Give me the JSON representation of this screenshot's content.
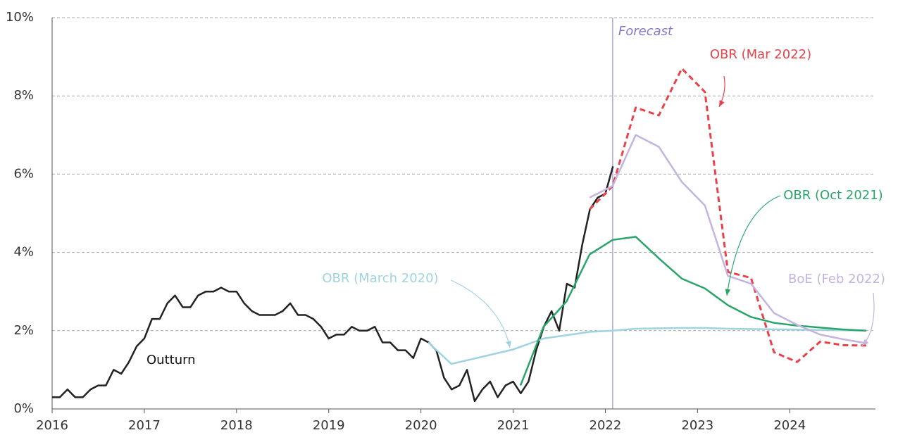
{
  "chart_data": {
    "type": "line",
    "xlim": [
      2016,
      2024.93
    ],
    "xticks": [
      2016,
      2017,
      2018,
      2019,
      2020,
      2021,
      2022,
      2023,
      2024
    ],
    "ylim": [
      0,
      10
    ],
    "yticks": [
      {
        "value": 0,
        "label": "0%"
      },
      {
        "value": 2,
        "label": "2%"
      },
      {
        "value": 4,
        "label": "4%"
      },
      {
        "value": 6,
        "label": "6%"
      },
      {
        "value": 8,
        "label": "8%"
      },
      {
        "value": 10,
        "label": "10%"
      }
    ],
    "grid": true,
    "forecast": {
      "x": 2022.08,
      "label": "Forecast",
      "color": "#8877cc"
    },
    "series": [
      {
        "name": "Outturn",
        "color": "#222222",
        "dash": false,
        "x": [
          2016,
          2016.083,
          2016.167,
          2016.25,
          2016.333,
          2016.417,
          2016.5,
          2016.583,
          2016.667,
          2016.75,
          2016.833,
          2016.917,
          2017,
          2017.083,
          2017.167,
          2017.25,
          2017.333,
          2017.417,
          2017.5,
          2017.583,
          2017.667,
          2017.75,
          2017.833,
          2017.917,
          2018,
          2018.083,
          2018.167,
          2018.25,
          2018.333,
          2018.417,
          2018.5,
          2018.583,
          2018.667,
          2018.75,
          2018.833,
          2018.917,
          2019,
          2019.083,
          2019.167,
          2019.25,
          2019.333,
          2019.417,
          2019.5,
          2019.583,
          2019.667,
          2019.75,
          2019.833,
          2019.917,
          2020,
          2020.083,
          2020.167,
          2020.25,
          2020.333,
          2020.417,
          2020.5,
          2020.583,
          2020.667,
          2020.75,
          2020.833,
          2020.917,
          2021,
          2021.083,
          2021.167,
          2021.25,
          2021.333,
          2021.417,
          2021.5,
          2021.583,
          2021.667,
          2021.75,
          2021.833,
          2021.917,
          2022,
          2022.083
        ],
        "values": [
          0.3,
          0.3,
          0.5,
          0.3,
          0.3,
          0.5,
          0.6,
          0.6,
          1.0,
          0.9,
          1.2,
          1.6,
          1.8,
          2.3,
          2.3,
          2.7,
          2.9,
          2.6,
          2.6,
          2.9,
          3.0,
          3.0,
          3.1,
          3.0,
          3.0,
          2.7,
          2.5,
          2.4,
          2.4,
          2.4,
          2.5,
          2.7,
          2.4,
          2.4,
          2.3,
          2.1,
          1.8,
          1.9,
          1.9,
          2.1,
          2.0,
          2.0,
          2.1,
          1.7,
          1.7,
          1.5,
          1.5,
          1.3,
          1.8,
          1.7,
          1.5,
          0.8,
          0.5,
          0.6,
          1.0,
          0.2,
          0.5,
          0.7,
          0.3,
          0.6,
          0.7,
          0.4,
          0.7,
          1.5,
          2.1,
          2.5,
          2.0,
          3.2,
          3.1,
          4.2,
          5.1,
          5.4,
          5.5,
          6.2
        ]
      },
      {
        "name": "OBR (March 2020)",
        "color": "#9fd3e0",
        "dash": false,
        "x": [
          2020.08,
          2020.33,
          2021.0,
          2021.33,
          2021.83,
          2022.08,
          2022.33,
          2022.83,
          2023.08,
          2023.33,
          2024.0,
          2024.83
        ],
        "values": [
          1.7,
          1.15,
          1.52,
          1.8,
          1.97,
          2.0,
          2.05,
          2.07,
          2.07,
          2.05,
          2.03,
          2.0
        ]
      },
      {
        "name": "OBR (Oct 2021)",
        "color": "#2aa56a",
        "dash": false,
        "x": [
          2021.08,
          2021.33,
          2021.58,
          2021.83,
          2022.08,
          2022.33,
          2022.58,
          2022.83,
          2023.08,
          2023.33,
          2023.58,
          2023.83,
          2024.08,
          2024.33,
          2024.58,
          2024.83
        ],
        "values": [
          0.6,
          2.1,
          2.75,
          3.95,
          4.32,
          4.4,
          3.85,
          3.33,
          3.08,
          2.65,
          2.35,
          2.2,
          2.13,
          2.08,
          2.03,
          2.0
        ]
      },
      {
        "name": "OBR (Mar 2022)",
        "color": "#e8424a",
        "dash": true,
        "x": [
          2021.83,
          2022.0,
          2022.08,
          2022.33,
          2022.58,
          2022.83,
          2023.08,
          2023.33,
          2023.58,
          2023.83,
          2024.08,
          2024.33,
          2024.58,
          2024.83
        ],
        "values": [
          5.1,
          5.5,
          5.7,
          7.7,
          7.5,
          8.7,
          8.1,
          3.5,
          3.35,
          1.45,
          1.2,
          1.72,
          1.63,
          1.62
        ]
      },
      {
        "name": "BoE (Feb 2022)",
        "color": "#c3b4e0",
        "dash": false,
        "x": [
          2021.83,
          2022.08,
          2022.33,
          2022.58,
          2022.83,
          2023.08,
          2023.33,
          2023.58,
          2023.83,
          2024.08,
          2024.33,
          2024.58,
          2024.83
        ],
        "values": [
          5.4,
          5.7,
          7.0,
          6.7,
          5.8,
          5.2,
          3.4,
          3.2,
          2.45,
          2.15,
          1.9,
          1.78,
          1.68
        ]
      }
    ]
  }
}
